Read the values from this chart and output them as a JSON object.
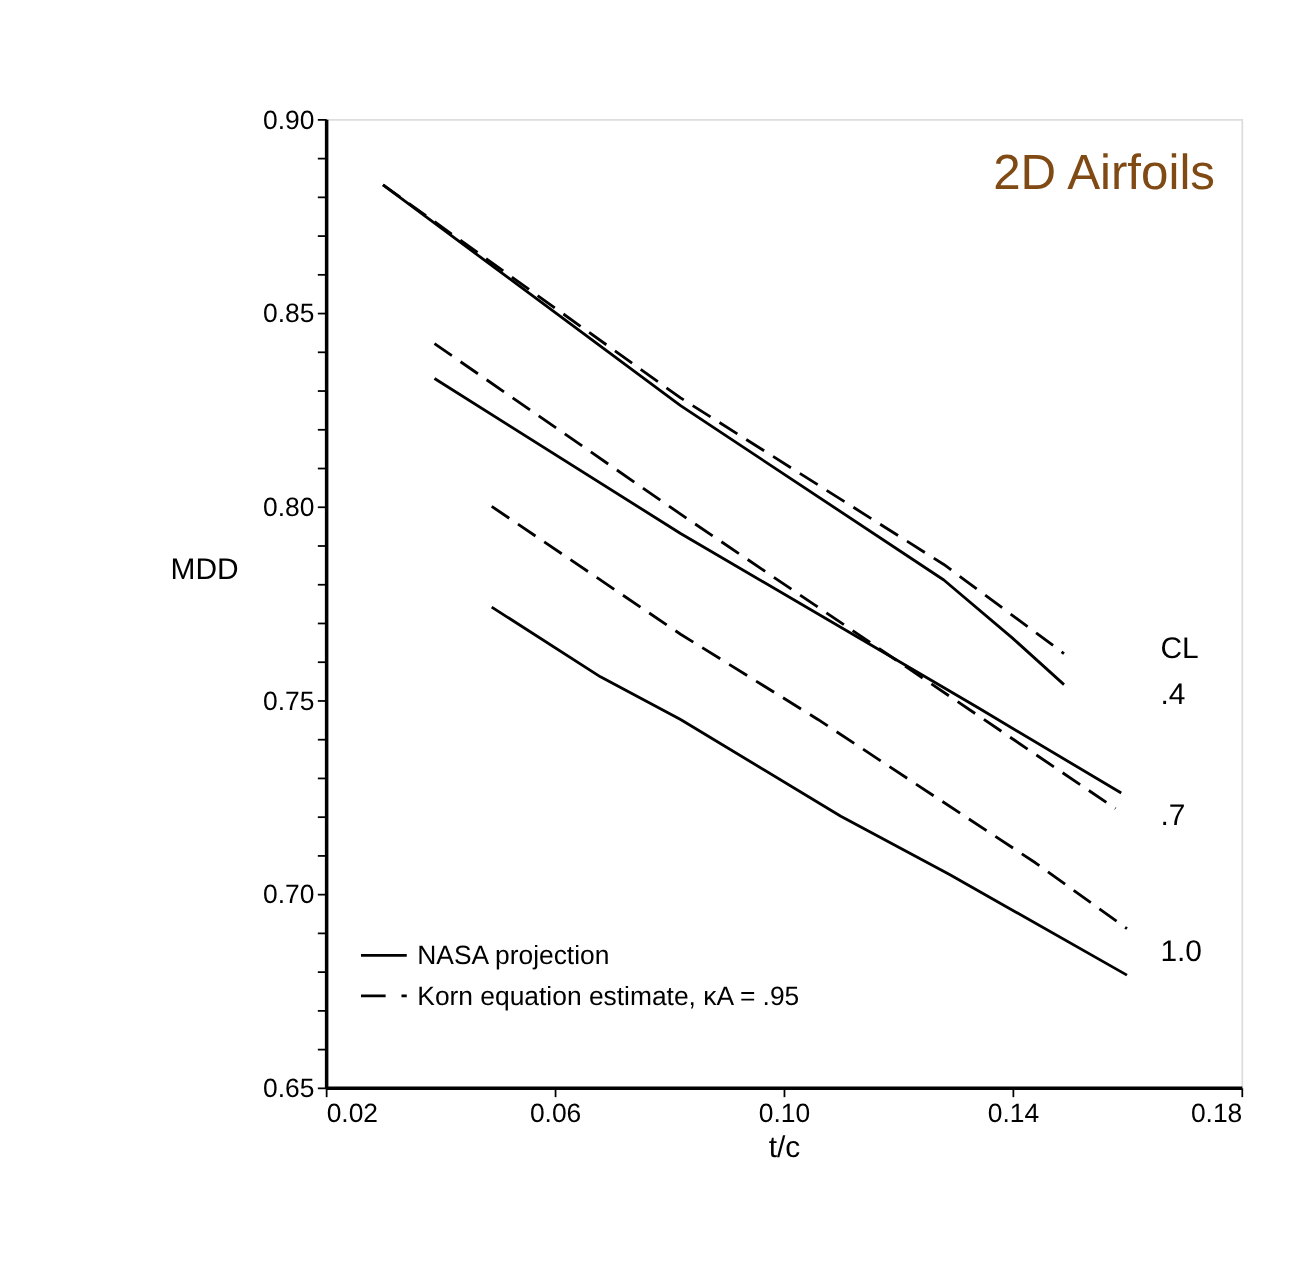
{
  "chart_data": {
    "type": "line",
    "title": "2D Airfoils",
    "xlabel": "t/c",
    "ylabel": "MDD",
    "xlim": [
      0.02,
      0.18
    ],
    "ylim": [
      0.65,
      0.9
    ],
    "xticks": [
      {
        "value": 0.02,
        "label": "0.02"
      },
      {
        "value": 0.06,
        "label": "0.06"
      },
      {
        "value": 0.1,
        "label": "0.10"
      },
      {
        "value": 0.14,
        "label": "0.14"
      },
      {
        "value": 0.18,
        "label": "0.18"
      }
    ],
    "yticks": [
      {
        "value": 0.65,
        "label": "0.65"
      },
      {
        "value": 0.66,
        "label": null
      },
      {
        "value": 0.67,
        "label": null
      },
      {
        "value": 0.68,
        "label": null
      },
      {
        "value": 0.69,
        "label": null
      },
      {
        "value": 0.7,
        "label": "0.70"
      },
      {
        "value": 0.71,
        "label": null
      },
      {
        "value": 0.72,
        "label": null
      },
      {
        "value": 0.73,
        "label": null
      },
      {
        "value": 0.74,
        "label": null
      },
      {
        "value": 0.75,
        "label": "0.75"
      },
      {
        "value": 0.76,
        "label": null
      },
      {
        "value": 0.77,
        "label": null
      },
      {
        "value": 0.78,
        "label": null
      },
      {
        "value": 0.79,
        "label": null
      },
      {
        "value": 0.8,
        "label": "0.80"
      },
      {
        "value": 0.81,
        "label": null
      },
      {
        "value": 0.82,
        "label": null
      },
      {
        "value": 0.83,
        "label": null
      },
      {
        "value": 0.84,
        "label": null
      },
      {
        "value": 0.85,
        "label": "0.85"
      },
      {
        "value": 0.86,
        "label": null
      },
      {
        "value": 0.87,
        "label": null
      },
      {
        "value": 0.88,
        "label": null
      },
      {
        "value": 0.89,
        "label": null
      },
      {
        "value": 0.9,
        "label": "0.90"
      }
    ],
    "grid": false,
    "legend": "bottom left",
    "marker": "none",
    "series": [
      {
        "name": "NASA projection",
        "color": "#000000",
        "line_style": "solid",
        "x": [
          0.03,
          0.082,
          0.128,
          0.14,
          0.149
        ],
        "values": [
          0.883,
          0.826,
          0.781,
          0.766,
          0.754
        ]
      },
      {
        "name": "Korn equation estimate, κA = .95",
        "color": "#000000",
        "line_style": "dashed",
        "x": [
          0.03,
          0.082,
          0.128,
          0.149
        ],
        "values": [
          0.883,
          0.828,
          0.785,
          0.762
        ]
      },
      {
        "color": "#000000",
        "line_style": "solid",
        "x": [
          0.039,
          0.082,
          0.134,
          0.159
        ],
        "values": [
          0.833,
          0.793,
          0.748,
          0.726
        ]
      },
      {
        "color": "#000000",
        "line_style": "dashed",
        "x": [
          0.039,
          0.082,
          0.1,
          0.158
        ],
        "values": [
          0.842,
          0.798,
          0.78,
          0.722
        ]
      },
      {
        "color": "#000000",
        "line_style": "solid",
        "x": [
          0.049,
          0.068,
          0.082,
          0.11,
          0.129,
          0.16
        ],
        "values": [
          0.774,
          0.756,
          0.745,
          0.72,
          0.705,
          0.679
        ]
      },
      {
        "color": "#000000",
        "line_style": "dashed",
        "x": [
          0.049,
          0.082,
          0.106,
          0.144,
          0.16
        ],
        "values": [
          0.8,
          0.767,
          0.745,
          0.708,
          0.691
        ]
      }
    ],
    "annotations": [
      "CL",
      ".4",
      ".7",
      "1.0"
    ]
  }
}
